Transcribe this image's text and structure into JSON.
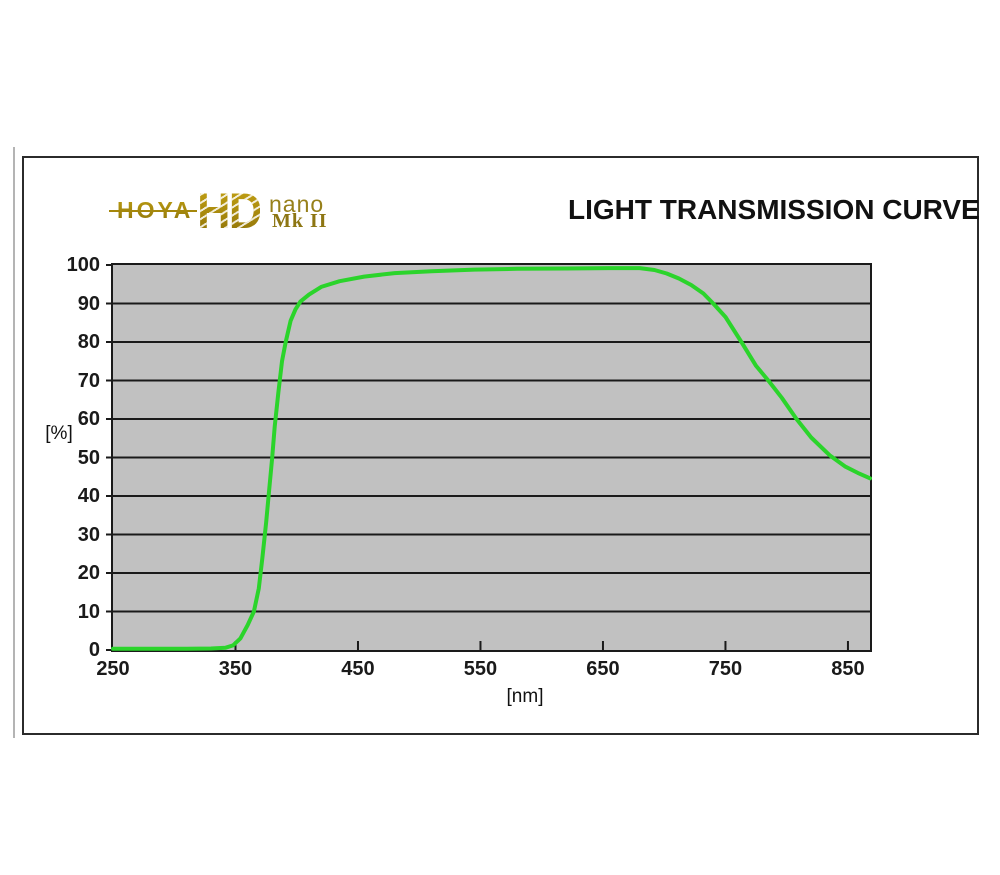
{
  "logo": {
    "hoya": "HOYA",
    "hd": "HD",
    "nano": "nano",
    "mk": "Mk II"
  },
  "header": {
    "title": "LIGHT TRANSMISSION CURVE"
  },
  "colors": {
    "logo_gold": "#a8890d",
    "plot_bg": "#c1c1c1",
    "gridline": "#1a1a1a",
    "curve_green": "#2bd42b",
    "label": "#1a1a1a"
  },
  "chart_data": {
    "type": "line",
    "title": "LIGHT TRANSMISSION CURVE",
    "xlabel": "[nm]",
    "ylabel": "[%]",
    "xlim": [
      250,
      868
    ],
    "ylim": [
      0,
      100
    ],
    "x_ticks": [
      250,
      350,
      450,
      550,
      650,
      750,
      850
    ],
    "y_ticks": [
      0,
      10,
      20,
      30,
      40,
      50,
      60,
      70,
      80,
      90,
      100
    ],
    "grid": "horizontal",
    "legend": "none",
    "series": [
      {
        "name": "light-transmission",
        "points": [
          [
            250,
            0.3
          ],
          [
            270,
            0.3
          ],
          [
            290,
            0.3
          ],
          [
            310,
            0.3
          ],
          [
            330,
            0.4
          ],
          [
            342,
            0.6
          ],
          [
            348,
            1.2
          ],
          [
            354,
            3
          ],
          [
            360,
            6.5
          ],
          [
            365,
            10
          ],
          [
            369,
            16
          ],
          [
            372,
            24
          ],
          [
            375,
            33
          ],
          [
            377,
            40
          ],
          [
            380,
            50
          ],
          [
            382,
            58
          ],
          [
            385,
            67
          ],
          [
            388,
            75
          ],
          [
            391,
            80
          ],
          [
            395,
            85.5
          ],
          [
            399,
            88.5
          ],
          [
            403,
            90.5
          ],
          [
            410,
            92.3
          ],
          [
            420,
            94.3
          ],
          [
            435,
            95.8
          ],
          [
            455,
            97
          ],
          [
            480,
            97.9
          ],
          [
            510,
            98.4
          ],
          [
            545,
            98.8
          ],
          [
            580,
            99
          ],
          [
            620,
            99.1
          ],
          [
            655,
            99.2
          ],
          [
            680,
            99.2
          ],
          [
            692,
            98.7
          ],
          [
            702,
            97.8
          ],
          [
            712,
            96.5
          ],
          [
            722,
            94.8
          ],
          [
            732,
            92.6
          ],
          [
            740,
            90
          ],
          [
            750,
            86.5
          ],
          [
            763,
            80
          ],
          [
            775,
            73.8
          ],
          [
            785,
            70
          ],
          [
            796,
            65.5
          ],
          [
            808,
            60
          ],
          [
            820,
            55.2
          ],
          [
            835,
            50.6
          ],
          [
            848,
            47.6
          ],
          [
            858,
            46
          ],
          [
            868,
            44.6
          ]
        ]
      }
    ]
  },
  "layout_note": ""
}
